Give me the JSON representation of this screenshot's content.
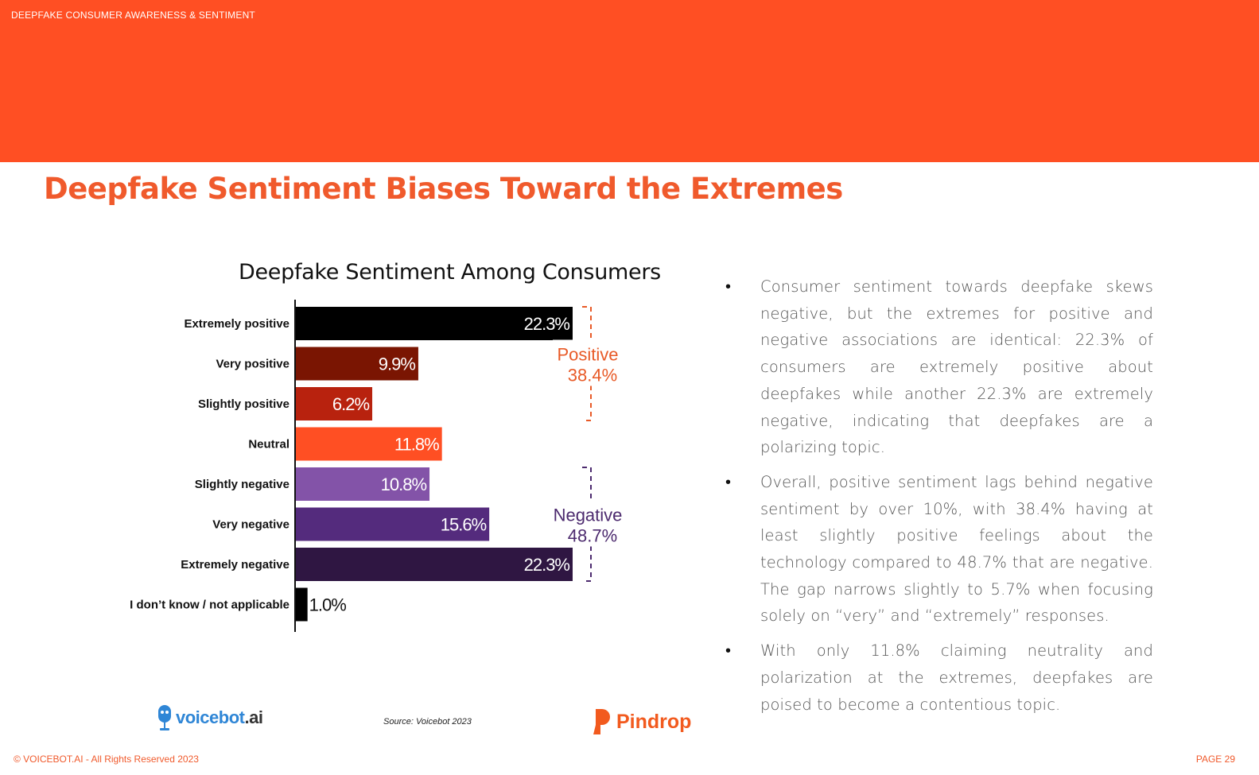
{
  "header": {
    "section_label": "DEEPFAKE CONSUMER AWARENESS & SENTIMENT",
    "band_color": "#ff4f23"
  },
  "page_title": "Deepfake Sentiment Biases Toward the Extremes",
  "chart_data": {
    "type": "bar",
    "orientation": "horizontal",
    "title": "Deepfake Sentiment Among Consumers",
    "categories": [
      "Extremely positive",
      "Very positive",
      "Slightly positive",
      "Neutral",
      "Slightly negative",
      "Very negative",
      "Extremely negative",
      "I don’t know / not applicable"
    ],
    "values": [
      22.3,
      9.9,
      6.2,
      11.8,
      10.8,
      15.6,
      22.3,
      1.0
    ],
    "value_labels": [
      "22.3%",
      "9.9%",
      "6.2%",
      "11.8%",
      "10.8%",
      "15.6%",
      "22.3%",
      "1.0%"
    ],
    "colors": [
      "#000000",
      "#7a1502",
      "#b8220e",
      "#ff4f23",
      "#8353a8",
      "#542b7d",
      "#2f1642",
      "#000000"
    ],
    "xlim": [
      0,
      22.3
    ],
    "grid": false,
    "xlabel": "",
    "ylabel": "",
    "annotations": [
      {
        "label": "Positive",
        "value": "38.4%",
        "color": "#e85a27",
        "from_index": 0,
        "to_index": 2
      },
      {
        "label": "Negative",
        "value": "48.7%",
        "color": "#4c2a6e",
        "from_index": 4,
        "to_index": 6
      }
    ]
  },
  "bullets": [
    "Consumer sentiment towards deepfake skews negative, but the extremes for positive and negative associations are identical: 22.3% of consumers are extremely positive about deepfakes while another 22.3% are extremely negative, indicating that deepfakes are a polarizing topic.",
    "Overall, positive sentiment lags behind negative sentiment by over 10%, with 38.4% having at least slightly positive feelings about the technology compared to 48.7% that are negative. The gap narrows slightly to 5.7% when focusing solely on “very” and “extremely” responses.",
    "With only 11.8% claiming neutrality and polarization at the extremes, deepfakes are poised to become a contentious topic."
  ],
  "bullet_symbol": "•",
  "logos": {
    "voicebot_main": "voicebot",
    "voicebot_suffix": ".ai",
    "pindrop": "Pindrop"
  },
  "source": "Source: Voicebot 2023",
  "footer": {
    "copyright": "© VOICEBOT.AI - All Rights Reserved 2023",
    "page": "PAGE 29"
  }
}
